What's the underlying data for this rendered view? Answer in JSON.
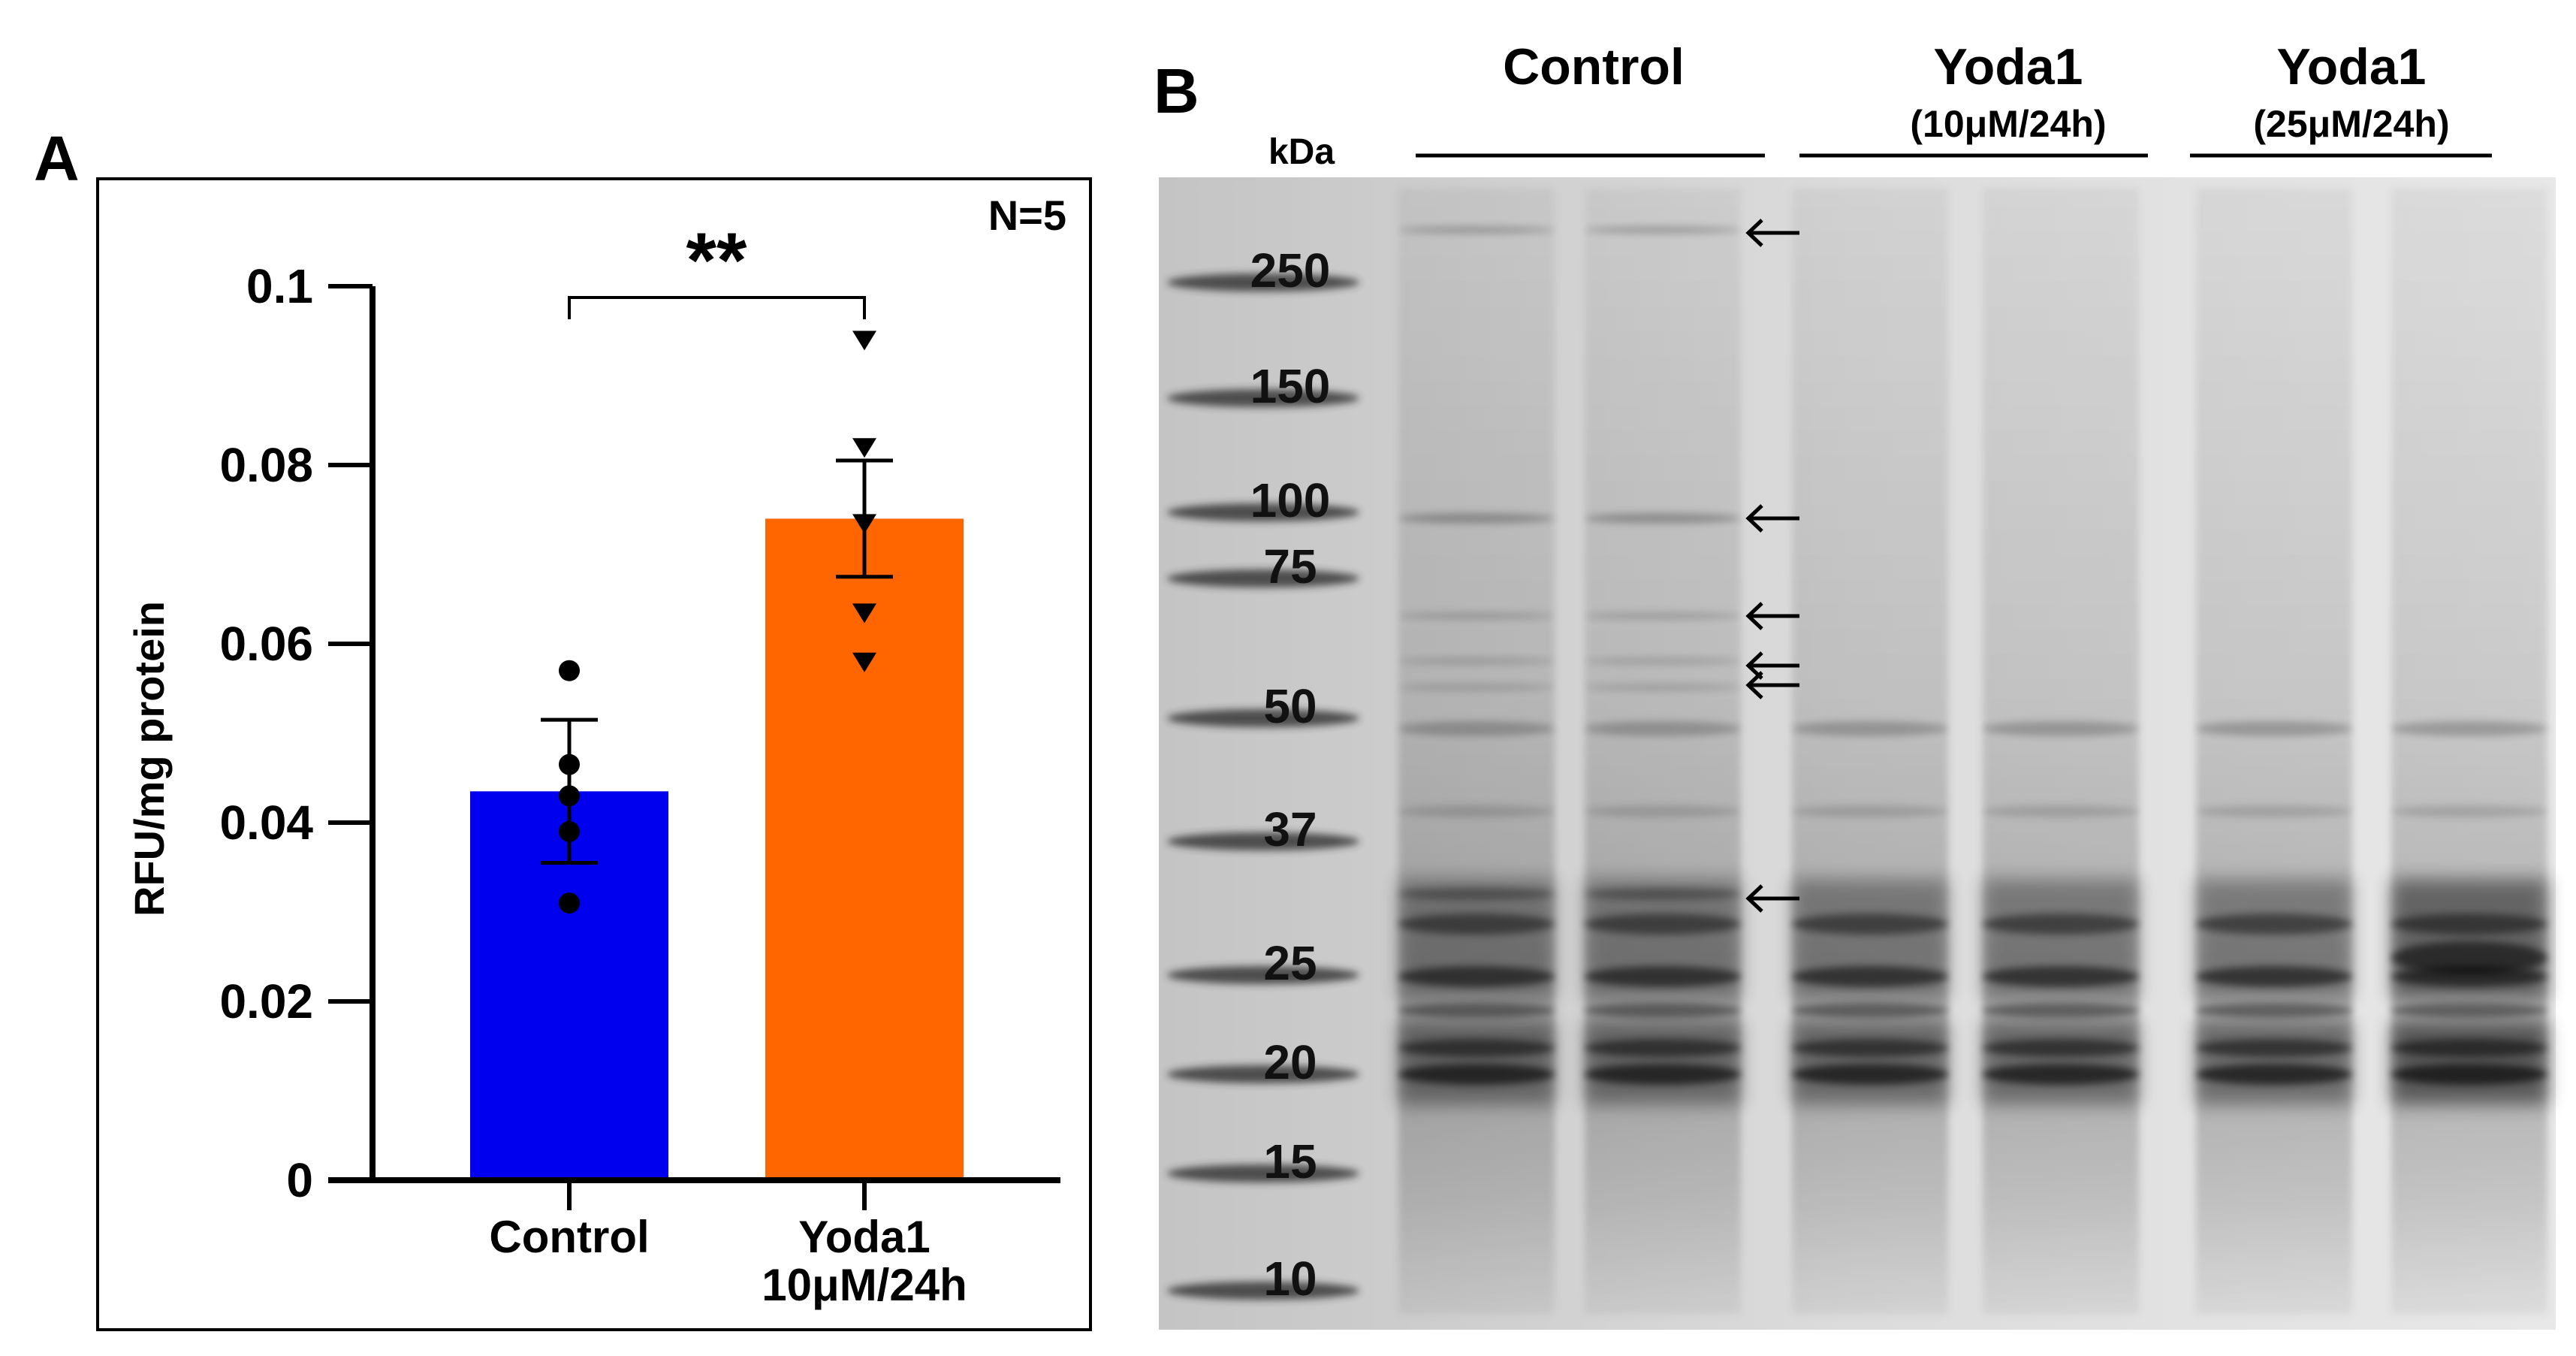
{
  "chart_data": [
    {
      "panel": "A",
      "type": "bar",
      "categories": [
        "Control",
        "Yoda1 10μM/24h"
      ],
      "category_lines": [
        [
          "Control"
        ],
        [
          "Yoda1",
          "10μM/24h"
        ]
      ],
      "values": [
        0.0435,
        0.074
      ],
      "error_sem": [
        0.008,
        0.0065
      ],
      "points": [
        [
          0.057,
          0.0465,
          0.043,
          0.039,
          0.031
        ],
        [
          0.094,
          0.082,
          0.0735,
          0.0635,
          0.058
        ]
      ],
      "colors": [
        "#0000ee",
        "#ff6600"
      ],
      "ylabel": "RFU/mg protein",
      "xlabel": "",
      "ylim": [
        0,
        0.1
      ],
      "yticks": [
        0,
        0.02,
        0.04,
        0.06,
        0.08,
        0.1
      ],
      "ytick_labels": [
        "0",
        "0.02",
        "0.04",
        "0.06",
        "0.08",
        "0.1"
      ],
      "annotations": [
        "N=5",
        "**"
      ],
      "grid": false
    },
    {
      "panel": "B",
      "type": "gel",
      "unit_label": "kDa",
      "marker_kda": [
        "250",
        "150",
        "100",
        "75",
        "50",
        "37",
        "25",
        "20",
        "15",
        "10"
      ],
      "groups": [
        {
          "label": "Control",
          "sublabel": "",
          "lanes": 2
        },
        {
          "label": "Yoda1",
          "sublabel": "(10μM/24h)",
          "lanes": 2
        },
        {
          "label": "Yoda1",
          "sublabel": "(25μM/24h)",
          "lanes": 2
        }
      ],
      "arrow_count": 6
    }
  ]
}
